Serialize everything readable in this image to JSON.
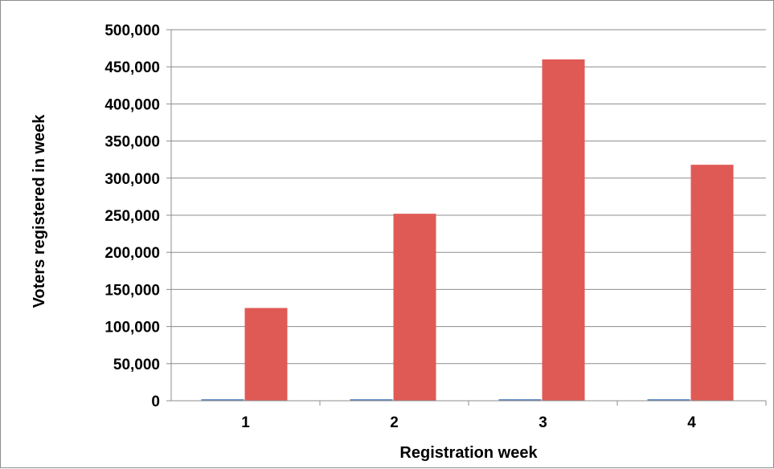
{
  "chart_data": {
    "type": "bar",
    "title": "",
    "xlabel": "Registration week",
    "ylabel": "Voters registered in week",
    "categories": [
      "1",
      "2",
      "3",
      "4"
    ],
    "series": [
      {
        "values": [
          2000,
          2000,
          2000,
          2000
        ],
        "color": "#4f81bd"
      },
      {
        "values": [
          125000,
          252000,
          460000,
          318000
        ],
        "color": "#e05a55"
      }
    ],
    "ylim": [
      0,
      500000
    ],
    "yticks": [
      0,
      50000,
      100000,
      150000,
      200000,
      250000,
      300000,
      350000,
      400000,
      450000,
      500000
    ],
    "ytick_labels": [
      "0",
      "50,000",
      "100,000",
      "150,000",
      "200,000",
      "250,000",
      "300,000",
      "350,000",
      "400,000",
      "450,000",
      "500,000"
    ],
    "grid": "horizontal",
    "legend": "none"
  }
}
